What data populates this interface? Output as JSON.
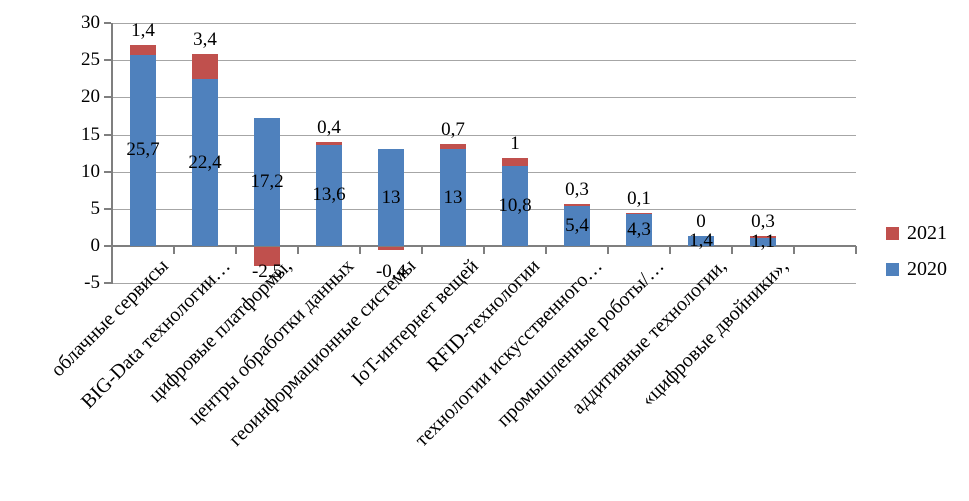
{
  "chart_data": {
    "type": "bar",
    "stacked": true,
    "orientation": "vertical-columns",
    "title": "",
    "xlabel": "",
    "ylabel": "",
    "categories": [
      "облачные сервисы",
      "BIG-Data технологии…",
      "цифровые платформы,",
      "центры обработки данных",
      "геоинформационные системы",
      "IoT-интернет вещей",
      "RFID-технологии",
      "технологии искусственного…",
      "промышленные роботы/…",
      "аддитивные технологии,",
      "«цифровые двойники»,"
    ],
    "series": [
      {
        "name": "2020",
        "color": "#4F81BD",
        "values": [
          25.7,
          22.4,
          17.2,
          13.6,
          13,
          13,
          10.8,
          5.4,
          4.3,
          1.4,
          1.1
        ],
        "labels": [
          "25,7",
          "22,4",
          "17,2",
          "13,6",
          "13",
          "13",
          "10,8",
          "5,4",
          "4,3",
          "1,4",
          "1,1"
        ],
        "label_position": "center"
      },
      {
        "name": "2021",
        "color": "#C0504D",
        "values": [
          1.4,
          3.4,
          -2.5,
          0.4,
          -0.4,
          0.7,
          1,
          0.3,
          0.1,
          0,
          0.3
        ],
        "labels": [
          "1,4",
          "3,4",
          "-2,5",
          "0,4",
          "-0,4",
          "0,7",
          "1",
          "0,3",
          "0,1",
          "0",
          "0,3"
        ],
        "label_position": "outside-end"
      }
    ],
    "ylim": [
      -5,
      30
    ],
    "yticks": [
      30,
      25,
      20,
      15,
      10,
      5,
      0,
      -5
    ],
    "ytick_labels": [
      "30",
      "25",
      "20",
      "15",
      "10",
      "5",
      "0",
      "-5"
    ],
    "grid": "horizontal",
    "gridline_color": "#A6A6A6",
    "axis_color": "#7F7F7F",
    "label_color": "#000000",
    "empty_trailing_slots": 1,
    "legend": {
      "position": "right",
      "entries": [
        {
          "label": "2021",
          "color": "#C0504D"
        },
        {
          "label": "2020",
          "color": "#4F81BD"
        }
      ]
    }
  }
}
